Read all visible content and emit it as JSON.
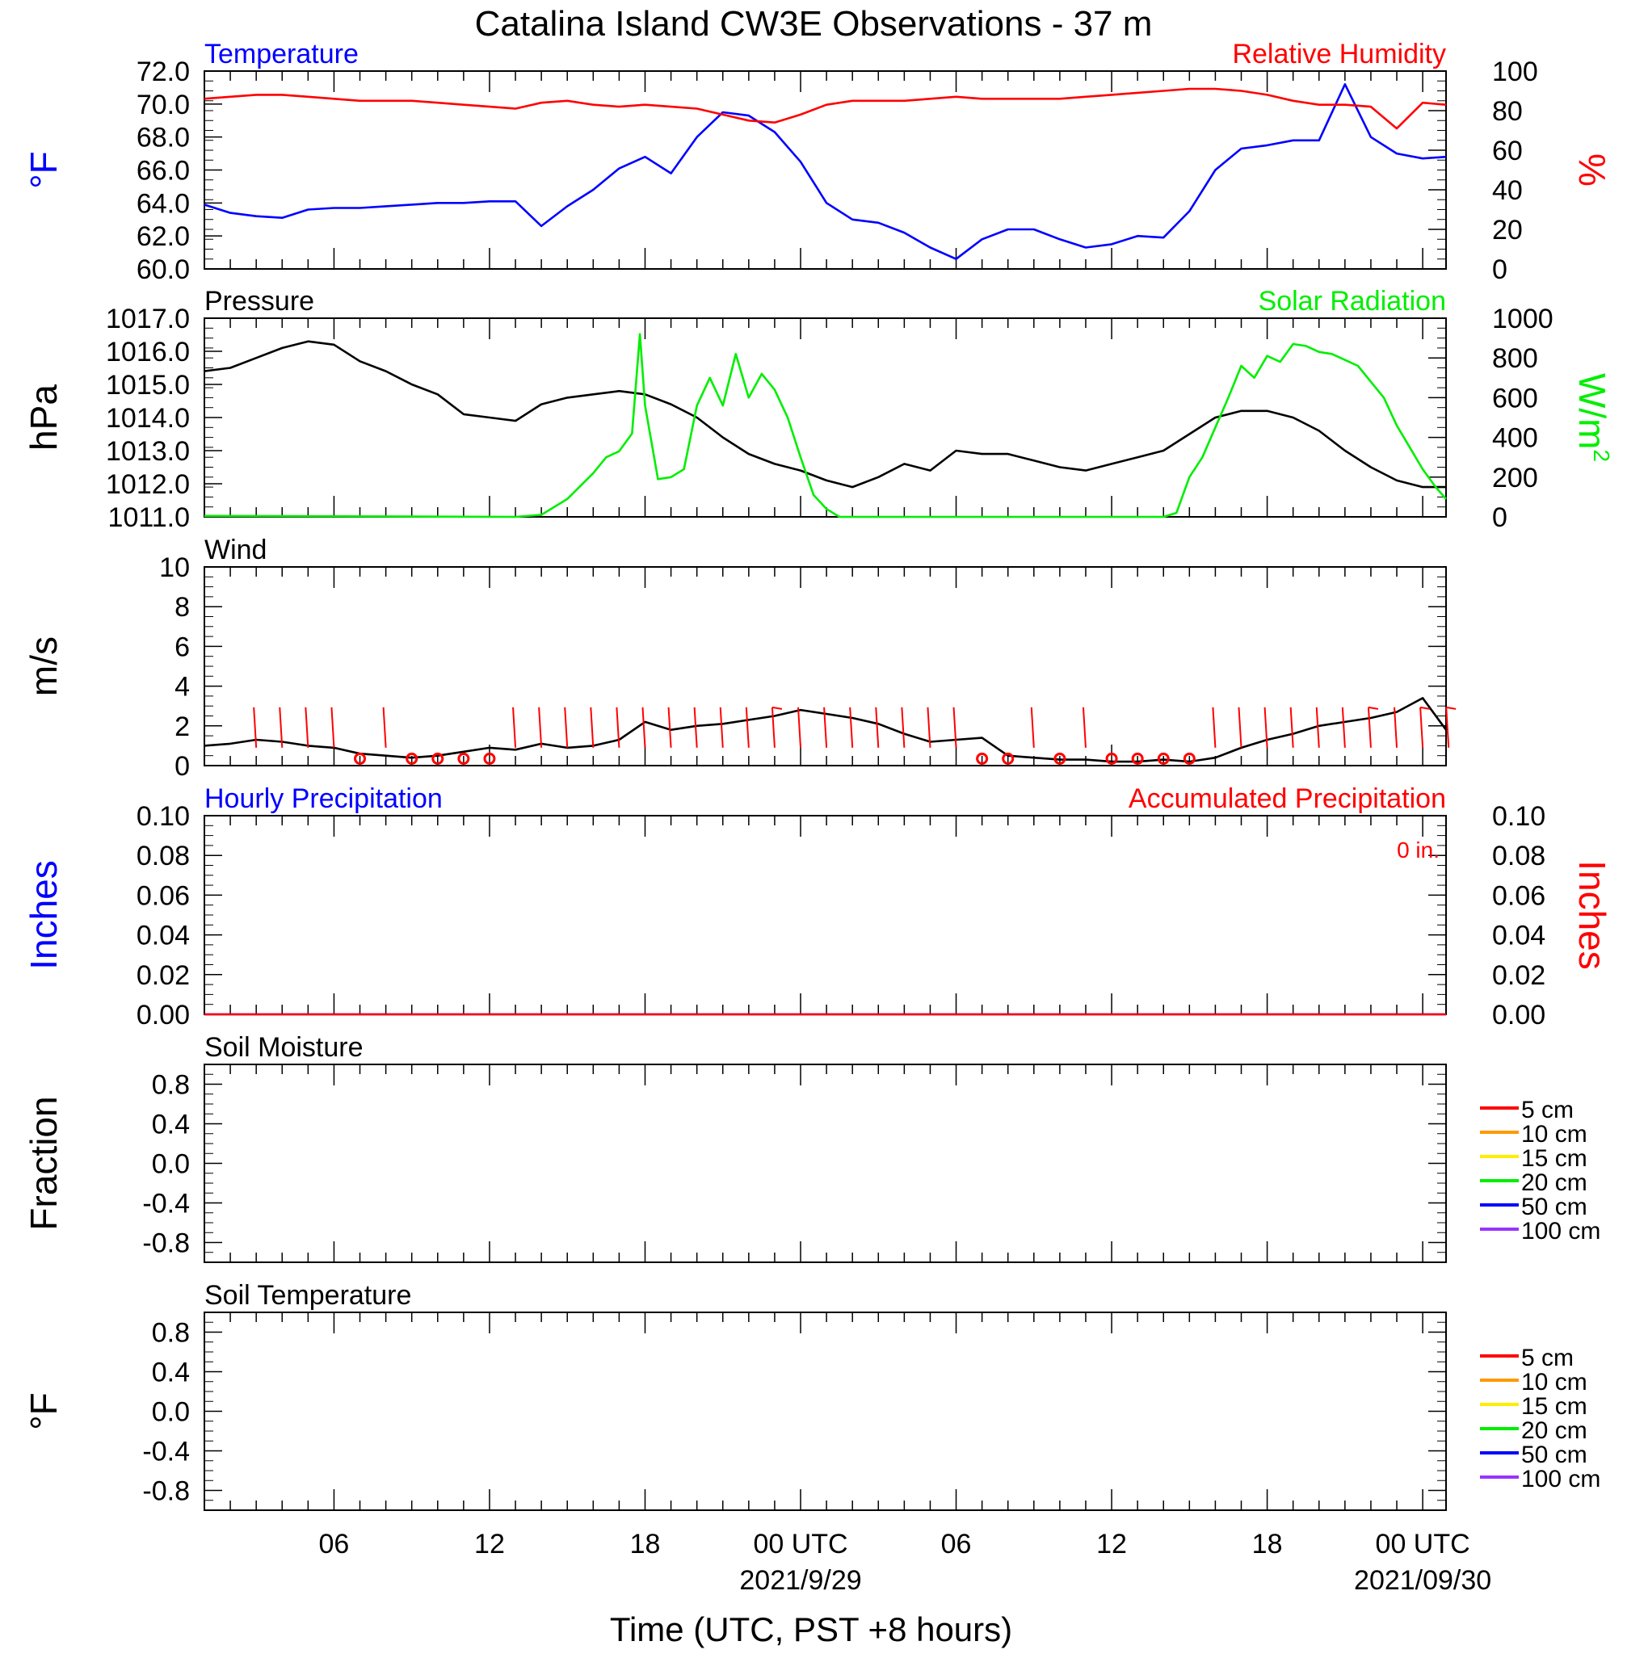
{
  "title": "Catalina Island CW3E Observations - 37 m",
  "xaxis": {
    "label": "Time (UTC, PST +8 hours)",
    "ticks": [
      {
        "h": 6,
        "label": "06"
      },
      {
        "h": 12,
        "label": "12"
      },
      {
        "h": 18,
        "label": "18"
      },
      {
        "h": 24,
        "label": "00 UTC"
      },
      {
        "h": 30,
        "label": "06"
      },
      {
        "h": 36,
        "label": "12"
      },
      {
        "h": 42,
        "label": "18"
      },
      {
        "h": 48,
        "label": "00 UTC"
      }
    ],
    "dates": [
      {
        "h": 24,
        "label": "2021/9/29"
      },
      {
        "h": 48,
        "label": "2021/09/30"
      }
    ],
    "range": [
      1,
      48.9
    ]
  },
  "colors": {
    "blue": "#0000ff",
    "red": "#ff0000",
    "green": "#00ee00",
    "black": "#000000"
  },
  "chart_data": [
    {
      "type": "line",
      "name": "temp-rh",
      "left_title": "Temperature",
      "right_title": "Relative Humidity",
      "ylabel_left": "°F",
      "ylabel_right": "%",
      "ylim_left": [
        60,
        72
      ],
      "ylim_right": [
        0,
        100
      ],
      "yticks_left": [
        "60.0",
        "62.0",
        "64.0",
        "66.0",
        "68.0",
        "70.0",
        "72.0"
      ],
      "yticks_right": [
        "0",
        "20",
        "40",
        "60",
        "80",
        "100"
      ],
      "series": [
        {
          "axis": "left",
          "color": "#0000ff",
          "x": [
            1,
            2,
            3,
            4,
            5,
            6,
            7,
            8,
            9,
            10,
            11,
            12,
            13,
            14,
            15,
            16,
            17,
            18,
            19,
            20,
            21,
            22,
            23,
            24,
            25,
            26,
            27,
            28,
            29,
            30,
            31,
            32,
            33,
            34,
            35,
            36,
            37,
            38,
            39,
            40,
            41,
            42,
            43,
            44,
            45,
            46,
            47,
            48,
            48.9
          ],
          "y": [
            63.9,
            63.4,
            63.2,
            63.1,
            63.6,
            63.7,
            63.7,
            63.8,
            63.9,
            64.0,
            64.0,
            64.1,
            64.1,
            62.6,
            63.8,
            64.8,
            66.1,
            66.8,
            65.8,
            68.0,
            69.5,
            69.3,
            68.3,
            66.5,
            64.0,
            63.0,
            62.8,
            62.2,
            61.3,
            60.6,
            61.8,
            62.4,
            62.4,
            61.8,
            61.3,
            61.5,
            62.0,
            61.9,
            63.5,
            66.0,
            67.3,
            67.5,
            67.8,
            67.8,
            71.2,
            68.0,
            67.0,
            66.7,
            66.8
          ]
        },
        {
          "axis": "right",
          "color": "#ff0000",
          "x": [
            1,
            2,
            3,
            4,
            5,
            6,
            7,
            8,
            9,
            10,
            11,
            12,
            13,
            14,
            15,
            16,
            17,
            18,
            19,
            20,
            21,
            22,
            23,
            24,
            25,
            26,
            27,
            28,
            29,
            30,
            31,
            32,
            33,
            34,
            35,
            36,
            37,
            38,
            39,
            40,
            41,
            42,
            43,
            44,
            45,
            46,
            47,
            48,
            48.9
          ],
          "y": [
            86,
            87,
            88,
            88,
            87,
            86,
            85,
            85,
            85,
            84,
            83,
            82,
            81,
            84,
            85,
            83,
            82,
            83,
            82,
            81,
            78,
            75,
            74,
            78,
            83,
            85,
            85,
            85,
            86,
            87,
            86,
            86,
            86,
            86,
            87,
            88,
            89,
            90,
            91,
            91,
            90,
            88,
            85,
            83,
            83,
            82,
            71,
            84,
            83
          ]
        }
      ]
    },
    {
      "type": "line",
      "name": "pressure-solar",
      "left_title": "Pressure",
      "right_title": "Solar Radiation",
      "ylabel_left": "hPa",
      "ylabel_right": "W/m",
      "ylabel_right_sup": "2",
      "ylim_left": [
        1011,
        1017
      ],
      "ylim_right": [
        0,
        1000
      ],
      "yticks_left": [
        "1011.0",
        "1012.0",
        "1013.0",
        "1014.0",
        "1015.0",
        "1016.0",
        "1017.0"
      ],
      "yticks_right": [
        "0",
        "200",
        "400",
        "600",
        "800",
        "1000"
      ],
      "series": [
        {
          "axis": "left",
          "color": "#000000",
          "x": [
            1,
            2,
            3,
            4,
            5,
            6,
            7,
            8,
            9,
            10,
            11,
            12,
            13,
            14,
            15,
            16,
            17,
            18,
            19,
            20,
            21,
            22,
            23,
            24,
            25,
            26,
            27,
            28,
            29,
            30,
            31,
            32,
            33,
            34,
            35,
            36,
            37,
            38,
            39,
            40,
            41,
            42,
            43,
            44,
            45,
            46,
            47,
            48,
            48.9
          ],
          "y": [
            1015.4,
            1015.5,
            1015.8,
            1016.1,
            1016.3,
            1016.2,
            1015.7,
            1015.4,
            1015.0,
            1014.7,
            1014.1,
            1014.0,
            1013.9,
            1014.4,
            1014.6,
            1014.7,
            1014.8,
            1014.7,
            1014.4,
            1014.0,
            1013.4,
            1012.9,
            1012.6,
            1012.4,
            1012.1,
            1011.9,
            1012.2,
            1012.6,
            1012.4,
            1013.0,
            1012.9,
            1012.9,
            1012.7,
            1012.5,
            1012.4,
            1012.6,
            1012.8,
            1013.0,
            1013.5,
            1014.0,
            1014.2,
            1014.2,
            1014.0,
            1013.6,
            1013.0,
            1012.5,
            1012.1,
            1011.9,
            1011.9
          ]
        },
        {
          "axis": "right",
          "color": "#00ee00",
          "x": [
            1,
            13,
            14,
            15,
            16,
            16.5,
            17,
            17.5,
            17.8,
            18,
            18.5,
            19,
            19.5,
            20,
            20.5,
            21,
            21.5,
            22,
            22.5,
            23,
            23.5,
            24,
            24.5,
            25,
            25.5,
            26,
            27,
            28,
            29,
            30,
            31,
            32,
            33,
            34,
            35,
            36,
            37,
            38,
            38.5,
            39,
            39.5,
            40,
            40.5,
            41,
            41.5,
            42,
            42.5,
            43,
            43.5,
            44,
            44.5,
            45,
            45.5,
            46,
            46.5,
            47,
            47.5,
            48,
            48.5,
            48.9
          ],
          "y": [
            5,
            0,
            10,
            90,
            220,
            300,
            330,
            420,
            920,
            560,
            190,
            200,
            240,
            560,
            700,
            560,
            820,
            600,
            720,
            640,
            500,
            300,
            110,
            40,
            0,
            0,
            0,
            0,
            0,
            0,
            0,
            0,
            0,
            0,
            0,
            0,
            0,
            0,
            20,
            200,
            300,
            450,
            600,
            760,
            700,
            810,
            780,
            870,
            860,
            830,
            820,
            790,
            760,
            680,
            600,
            460,
            350,
            240,
            150,
            90
          ]
        }
      ]
    },
    {
      "type": "line",
      "name": "wind",
      "left_title": "Wind",
      "ylabel_left": "m/s",
      "ylim_left": [
        0,
        10
      ],
      "yticks_left": [
        "0",
        "2",
        "4",
        "6",
        "8",
        "10"
      ],
      "series": [
        {
          "axis": "left",
          "color": "#000000",
          "x": [
            1,
            2,
            3,
            4,
            5,
            6,
            7,
            8,
            9,
            10,
            11,
            12,
            13,
            14,
            15,
            16,
            17,
            18,
            19,
            20,
            21,
            22,
            23,
            24,
            25,
            26,
            27,
            28,
            29,
            30,
            31,
            32,
            33,
            34,
            35,
            36,
            37,
            38,
            39,
            40,
            41,
            42,
            43,
            44,
            45,
            46,
            47,
            48,
            48.9
          ],
          "y": [
            1.0,
            1.1,
            1.3,
            1.2,
            1.0,
            0.9,
            0.6,
            0.5,
            0.4,
            0.5,
            0.7,
            0.9,
            0.8,
            1.1,
            0.9,
            1.0,
            1.3,
            2.2,
            1.8,
            2.0,
            2.1,
            2.3,
            2.5,
            2.8,
            2.6,
            2.4,
            2.1,
            1.6,
            1.2,
            1.3,
            1.4,
            0.5,
            0.4,
            0.3,
            0.3,
            0.2,
            0.2,
            0.3,
            0.2,
            0.4,
            0.9,
            1.3,
            1.6,
            2.0,
            2.2,
            2.4,
            2.7,
            3.4,
            1.8
          ]
        }
      ],
      "barbs": [
        {
          "h": 3,
          "speed": 2,
          "dir": "N"
        },
        {
          "h": 4,
          "speed": 2,
          "dir": "N"
        },
        {
          "h": 5,
          "speed": 2,
          "dir": "N"
        },
        {
          "h": 6,
          "speed": 2,
          "dir": "N"
        },
        {
          "h": 7,
          "speed": 0,
          "dir": "calm"
        },
        {
          "h": 8,
          "speed": 3,
          "dir": "N"
        },
        {
          "h": 9,
          "speed": 0,
          "dir": "calm"
        },
        {
          "h": 10,
          "speed": 0,
          "dir": "calm"
        },
        {
          "h": 11,
          "speed": 0,
          "dir": "calm"
        },
        {
          "h": 12,
          "speed": 0,
          "dir": "calm"
        },
        {
          "h": 13,
          "speed": 2,
          "dir": "N"
        },
        {
          "h": 14,
          "speed": 2,
          "dir": "N"
        },
        {
          "h": 15,
          "speed": 2,
          "dir": "N"
        },
        {
          "h": 16,
          "speed": 2,
          "dir": "N"
        },
        {
          "h": 17,
          "speed": 3,
          "dir": "N"
        },
        {
          "h": 18,
          "speed": 3,
          "dir": "N"
        },
        {
          "h": 19,
          "speed": 3,
          "dir": "N"
        },
        {
          "h": 20,
          "speed": 3,
          "dir": "N"
        },
        {
          "h": 21,
          "speed": 3,
          "dir": "N"
        },
        {
          "h": 22,
          "speed": 3,
          "dir": "N"
        },
        {
          "h": 23,
          "speed": 4,
          "dir": "N"
        },
        {
          "h": 24,
          "speed": 3,
          "dir": "N"
        },
        {
          "h": 25,
          "speed": 3,
          "dir": "N"
        },
        {
          "h": 26,
          "speed": 3,
          "dir": "N"
        },
        {
          "h": 27,
          "speed": 3,
          "dir": "N"
        },
        {
          "h": 28,
          "speed": 2,
          "dir": "N"
        },
        {
          "h": 29,
          "speed": 2,
          "dir": "N"
        },
        {
          "h": 30,
          "speed": 2,
          "dir": "N"
        },
        {
          "h": 31,
          "speed": 0,
          "dir": "calm"
        },
        {
          "h": 32,
          "speed": 0,
          "dir": "calm"
        },
        {
          "h": 33,
          "speed": 2,
          "dir": "N"
        },
        {
          "h": 34,
          "speed": 0,
          "dir": "calm"
        },
        {
          "h": 35,
          "speed": 2,
          "dir": "N"
        },
        {
          "h": 36,
          "speed": 0,
          "dir": "calm"
        },
        {
          "h": 37,
          "speed": 0,
          "dir": "calm"
        },
        {
          "h": 38,
          "speed": 0,
          "dir": "calm"
        },
        {
          "h": 39,
          "speed": 0,
          "dir": "calm"
        },
        {
          "h": 40,
          "speed": 2,
          "dir": "N"
        },
        {
          "h": 41,
          "speed": 2,
          "dir": "N"
        },
        {
          "h": 42,
          "speed": 2,
          "dir": "N"
        },
        {
          "h": 43,
          "speed": 2,
          "dir": "N"
        },
        {
          "h": 44,
          "speed": 2,
          "dir": "N"
        },
        {
          "h": 45,
          "speed": 3,
          "dir": "N"
        },
        {
          "h": 46,
          "speed": 4,
          "dir": "N"
        },
        {
          "h": 47,
          "speed": 2,
          "dir": "N"
        },
        {
          "h": 48,
          "speed": 4,
          "dir": "N"
        },
        {
          "h": 49,
          "speed": 4,
          "dir": "N"
        }
      ]
    },
    {
      "type": "line",
      "name": "precip",
      "left_title": "Hourly Precipitation",
      "right_title": "Accumulated Precipitation",
      "annotation": "0 in.",
      "ylabel_left": "Inches",
      "ylabel_right": "Inches",
      "ylim_left": [
        0,
        0.1
      ],
      "ylim_right": [
        0,
        0.1
      ],
      "yticks_left": [
        "0.00",
        "0.02",
        "0.04",
        "0.06",
        "0.08",
        "0.10"
      ],
      "yticks_right": [
        "0.00",
        "0.02",
        "0.04",
        "0.06",
        "0.08",
        "0.10"
      ],
      "series": [
        {
          "axis": "left",
          "color": "#0000ff",
          "x": [
            1,
            48.9
          ],
          "y": [
            0,
            0
          ]
        },
        {
          "axis": "right",
          "color": "#ff0000",
          "x": [
            1,
            48.9
          ],
          "y": [
            0,
            0
          ]
        }
      ]
    },
    {
      "type": "line",
      "name": "soil-moisture",
      "left_title": "Soil Moisture",
      "ylabel_left": "Fraction",
      "ylim_left": [
        -1,
        1
      ],
      "yticks_left": [
        "-0.8",
        "-0.4",
        "0.0",
        "0.4",
        "0.8"
      ],
      "legend": [
        {
          "label": "5 cm",
          "color": "#ff0000"
        },
        {
          "label": "10 cm",
          "color": "#ff9900"
        },
        {
          "label": "15 cm",
          "color": "#ffee00"
        },
        {
          "label": "20 cm",
          "color": "#00ee00"
        },
        {
          "label": "50 cm",
          "color": "#0000ff"
        },
        {
          "label": "100 cm",
          "color": "#9933ff"
        }
      ],
      "series": []
    },
    {
      "type": "line",
      "name": "soil-temperature",
      "left_title": "Soil Temperature",
      "ylabel_left": "°F",
      "ylim_left": [
        -1,
        1
      ],
      "yticks_left": [
        "-0.8",
        "-0.4",
        "0.0",
        "0.4",
        "0.8"
      ],
      "legend": [
        {
          "label": "5 cm",
          "color": "#ff0000"
        },
        {
          "label": "10 cm",
          "color": "#ff9900"
        },
        {
          "label": "15 cm",
          "color": "#ffee00"
        },
        {
          "label": "20 cm",
          "color": "#00ee00"
        },
        {
          "label": "50 cm",
          "color": "#0000ff"
        },
        {
          "label": "100 cm",
          "color": "#9933ff"
        }
      ],
      "series": []
    }
  ]
}
